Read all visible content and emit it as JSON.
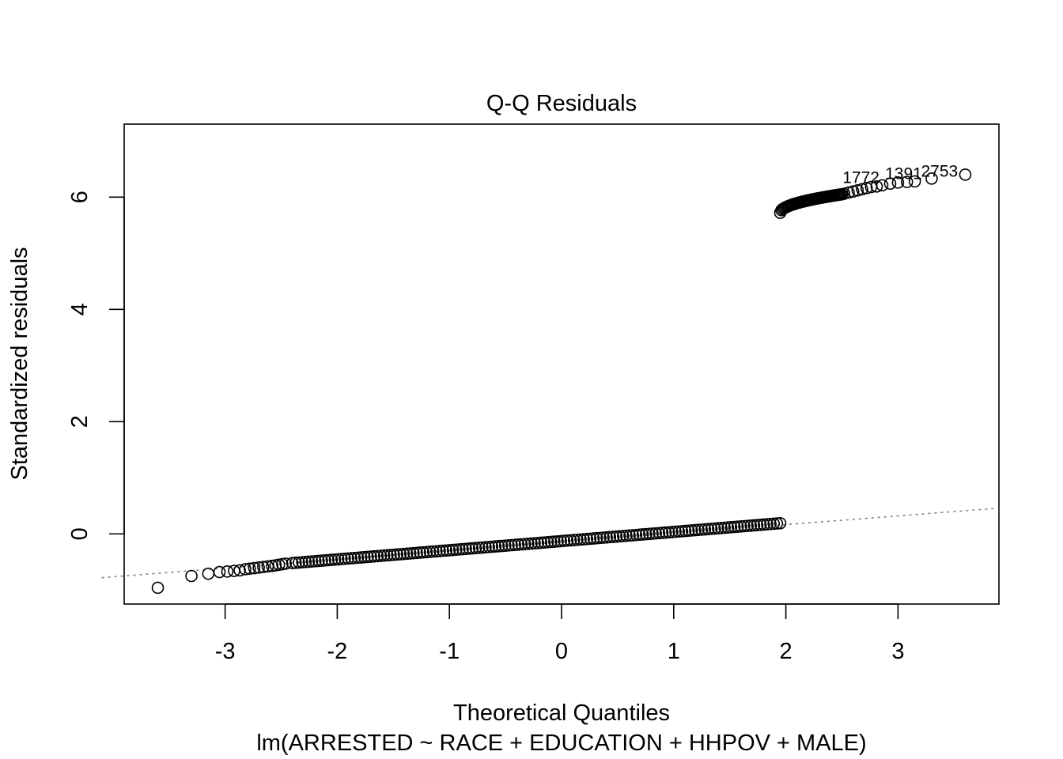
{
  "chart_data": {
    "type": "scatter",
    "title": "Q-Q Residuals",
    "xlabel": "Theoretical Quantiles",
    "ylabel": "Standardized residuals",
    "subtitle": "lm(ARRESTED ~ RACE + EDUCATION + HHPOV + MALE)",
    "xlim": [
      -3.9,
      3.9
    ],
    "ylim": [
      -1.25,
      7.3
    ],
    "x_ticks": [
      -3,
      -2,
      -1,
      0,
      1,
      2,
      3
    ],
    "y_ticks": [
      0,
      2,
      4,
      6
    ],
    "x_tick_labels": [
      "-3",
      "-2",
      "-1",
      "0",
      "1",
      "2",
      "3"
    ],
    "y_tick_labels": [
      "0",
      "2",
      "4",
      "6"
    ],
    "grid": false,
    "reference_line": {
      "style": "dotted",
      "color": "#808080",
      "slope": 0.155,
      "intercept": -0.145
    },
    "lower_group": {
      "x_range": [
        -2.4,
        1.95
      ],
      "y_range": [
        -0.52,
        0.19
      ]
    },
    "lower_tail_points": [
      {
        "x": -3.6,
        "y": -0.96
      },
      {
        "x": -3.3,
        "y": -0.75
      },
      {
        "x": -3.15,
        "y": -0.71
      },
      {
        "x": -3.05,
        "y": -0.68
      },
      {
        "x": -2.98,
        "y": -0.67
      },
      {
        "x": -2.92,
        "y": -0.66
      },
      {
        "x": -2.87,
        "y": -0.65
      },
      {
        "x": -2.82,
        "y": -0.63
      },
      {
        "x": -2.78,
        "y": -0.62
      },
      {
        "x": -2.74,
        "y": -0.61
      },
      {
        "x": -2.7,
        "y": -0.6
      },
      {
        "x": -2.66,
        "y": -0.59
      },
      {
        "x": -2.62,
        "y": -0.58
      },
      {
        "x": -2.58,
        "y": -0.57
      },
      {
        "x": -2.55,
        "y": -0.56
      },
      {
        "x": -2.52,
        "y": -0.55
      },
      {
        "x": -2.49,
        "y": -0.54
      },
      {
        "x": -2.46,
        "y": -0.53
      }
    ],
    "upper_group": {
      "x_range": [
        1.95,
        2.5
      ],
      "y_range": [
        5.72,
        6.05
      ]
    },
    "upper_tail_points": [
      {
        "x": 2.52,
        "y": 6.06
      },
      {
        "x": 2.56,
        "y": 6.08
      },
      {
        "x": 2.6,
        "y": 6.1
      },
      {
        "x": 2.64,
        "y": 6.12
      },
      {
        "x": 2.68,
        "y": 6.14
      },
      {
        "x": 2.72,
        "y": 6.16
      },
      {
        "x": 2.76,
        "y": 6.18
      },
      {
        "x": 2.81,
        "y": 6.19
      },
      {
        "x": 2.86,
        "y": 6.21
      },
      {
        "x": 2.93,
        "y": 6.24
      },
      {
        "x": 3.0,
        "y": 6.26
      },
      {
        "x": 3.08,
        "y": 6.27
      },
      {
        "x": 3.15,
        "y": 6.28
      },
      {
        "x": 3.3,
        "y": 6.33
      },
      {
        "x": 3.6,
        "y": 6.4
      }
    ],
    "point_labels": [
      {
        "text": "1772",
        "x": 2.67,
        "y": 6.25
      },
      {
        "text": "1391",
        "x": 3.05,
        "y": 6.32
      },
      {
        "text": "2753",
        "x": 3.37,
        "y": 6.36
      }
    ]
  }
}
